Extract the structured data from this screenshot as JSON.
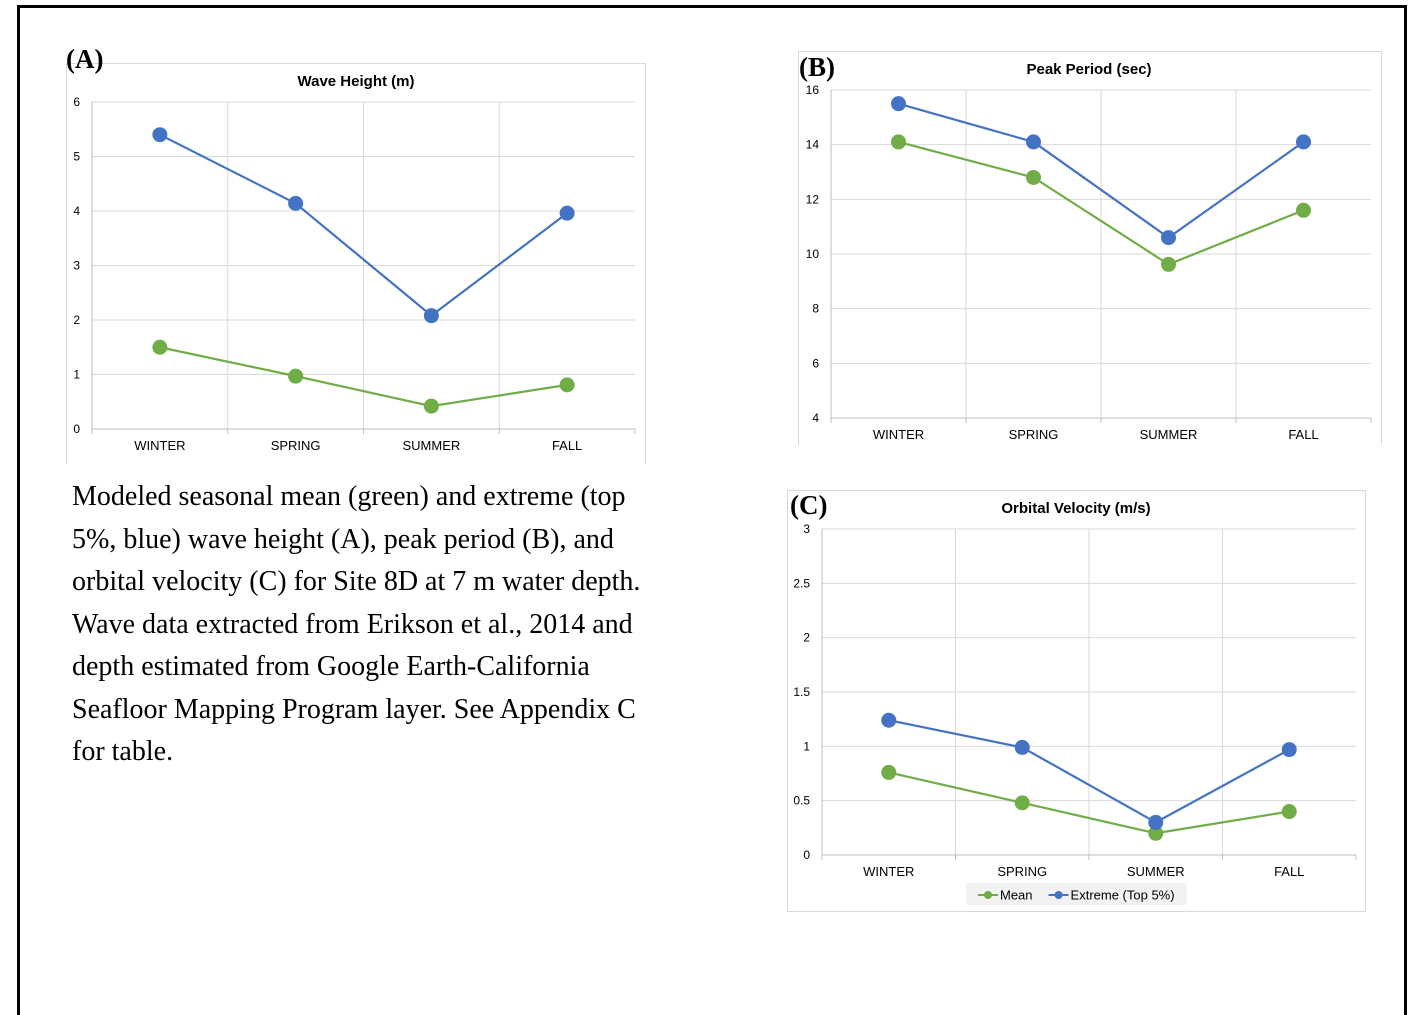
{
  "caption": "Modeled seasonal mean (green) and extreme (top 5%, blue) wave height (A), peak period (B), and orbital velocity (C) for Site 8D at 7 m water depth. Wave data extracted from Erikson et al., 2014 and depth estimated from Google Earth-California Seafloor Mapping Program layer. See Appendix C for table.",
  "colors": {
    "mean": "#70ad47",
    "extreme": "#4472c4",
    "grid": "#d9d9d9",
    "axis": "#bfbfbf"
  },
  "chart_data": [
    {
      "type": "line",
      "panel_label": "(A)",
      "title": "Wave Height (m)",
      "categories": [
        "WINTER",
        "SPRING",
        "SUMMER",
        "FALL"
      ],
      "yticks": [
        "0",
        "1",
        "2",
        "3",
        "4",
        "5",
        "6"
      ],
      "ylim": [
        0,
        6
      ],
      "grid": true,
      "series": [
        {
          "name": "Mean",
          "color": "#70ad47",
          "values": [
            1.5,
            0.97,
            0.42,
            0.81
          ]
        },
        {
          "name": "Extreme (Top 5%)",
          "color": "#4472c4",
          "values": [
            5.4,
            4.14,
            2.08,
            3.96
          ]
        }
      ]
    },
    {
      "type": "line",
      "panel_label": "(B)",
      "title": "Peak Period (sec)",
      "categories": [
        "WINTER",
        "SPRING",
        "SUMMER",
        "FALL"
      ],
      "yticks": [
        "4",
        "6",
        "8",
        "10",
        "12",
        "14",
        "16"
      ],
      "ylim": [
        4,
        16
      ],
      "grid": true,
      "series": [
        {
          "name": "Mean",
          "color": "#70ad47",
          "values": [
            14.1,
            12.8,
            9.62,
            11.6
          ]
        },
        {
          "name": "Extreme (Top 5%)",
          "color": "#4472c4",
          "values": [
            15.5,
            14.1,
            10.6,
            14.1
          ]
        }
      ]
    },
    {
      "type": "line",
      "panel_label": "(C)",
      "title": "Orbital Velocity (m/s)",
      "categories": [
        "WINTER",
        "SPRING",
        "SUMMER",
        "FALL"
      ],
      "yticks": [
        "0",
        "0.5",
        "1",
        "1.5",
        "2",
        "2.5",
        "3"
      ],
      "ylim": [
        0,
        3
      ],
      "grid": true,
      "legend": "bottom",
      "series": [
        {
          "name": "Mean",
          "color": "#70ad47",
          "values": [
            0.76,
            0.48,
            0.2,
            0.4
          ]
        },
        {
          "name": "Extreme (Top 5%)",
          "color": "#4472c4",
          "values": [
            1.24,
            0.99,
            0.3,
            0.97
          ]
        }
      ]
    }
  ]
}
